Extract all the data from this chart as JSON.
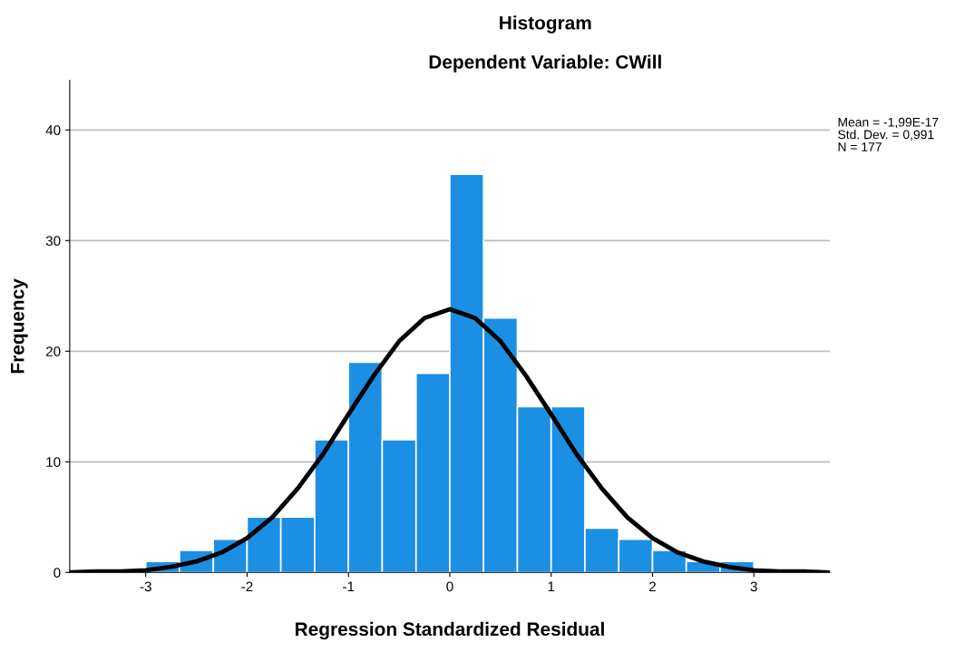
{
  "chart_data": {
    "type": "histogram",
    "title": "Histogram",
    "subtitle": "Dependent Variable: CWill",
    "xlabel": "Regression Standardized Residual",
    "ylabel": "Frequency",
    "bins": [
      -3,
      -2.667,
      -2.333,
      -2,
      -1.667,
      -1.333,
      -1,
      -0.667,
      -0.333,
      0,
      0.333,
      0.667,
      1,
      1.333,
      1.667,
      2,
      2.333,
      2.667,
      3
    ],
    "values": [
      1,
      2,
      3,
      5,
      5,
      12,
      19,
      12,
      18,
      36,
      23,
      15,
      15,
      4,
      3,
      2,
      1,
      1
    ],
    "color": "#1a8fe3",
    "series": [
      {
        "type": "line",
        "color": "#000000",
        "x": [
          -3.75,
          -3.5,
          -3.25,
          -3,
          -2.75,
          -2.5,
          -2.25,
          -2,
          -1.75,
          -1.5,
          -1.25,
          -1,
          -0.75,
          -0.5,
          -0.25,
          0,
          0.25,
          0.5,
          0.75,
          1,
          1.25,
          1.5,
          1.75,
          2,
          2.25,
          2.5,
          2.75,
          3,
          3.25,
          3.5,
          3.75
        ],
        "values": [
          0.0,
          0.1,
          0.1,
          0.2,
          0.5,
          1.0,
          1.8,
          3.1,
          5.0,
          7.6,
          10.7,
          14.3,
          17.8,
          20.9,
          23.0,
          23.8,
          23.0,
          20.9,
          17.8,
          14.3,
          10.7,
          7.6,
          5.0,
          3.1,
          1.8,
          1.0,
          0.5,
          0.2,
          0.1,
          0.1,
          0.0
        ]
      }
    ],
    "xlim": [
      -3.75,
      3.75
    ],
    "xticks": [
      -3,
      -2,
      -1,
      0,
      1,
      2,
      3
    ],
    "ylim": [
      0,
      44.5
    ],
    "yticks": [
      0,
      10,
      20,
      30,
      40
    ],
    "grid": "y",
    "annotations": [
      "Mean = -1,99E-17",
      "Std. Dev. = 0,991",
      "N = 177"
    ]
  }
}
